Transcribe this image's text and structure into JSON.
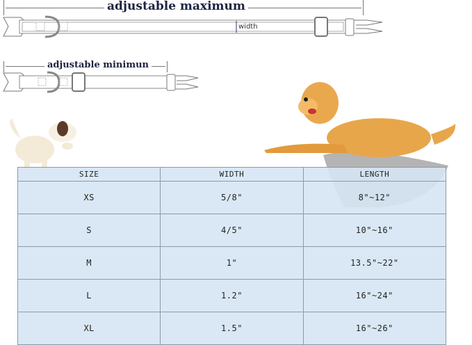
{
  "diagram": {
    "max_label": "adjustable maximum",
    "min_label": "adjustable minimun",
    "width_label": "width"
  },
  "colors": {
    "table_bg": "#d6e6f4",
    "border": "#8c9aa8",
    "label": "#1d2340",
    "dog": "#e8a64a"
  },
  "table": {
    "headers": [
      "SIZE",
      "WIDTH",
      "LENGTH"
    ],
    "rows": [
      [
        "XS",
        "5/8\"",
        "8\"~12\""
      ],
      [
        "S",
        "4/5\"",
        "10\"~16\""
      ],
      [
        "M",
        "1\"",
        "13.5\"~22\""
      ],
      [
        "L",
        "1.2\"",
        "16\"~24\""
      ],
      [
        "XL",
        "1.5\"",
        "16\"~26\""
      ]
    ]
  }
}
